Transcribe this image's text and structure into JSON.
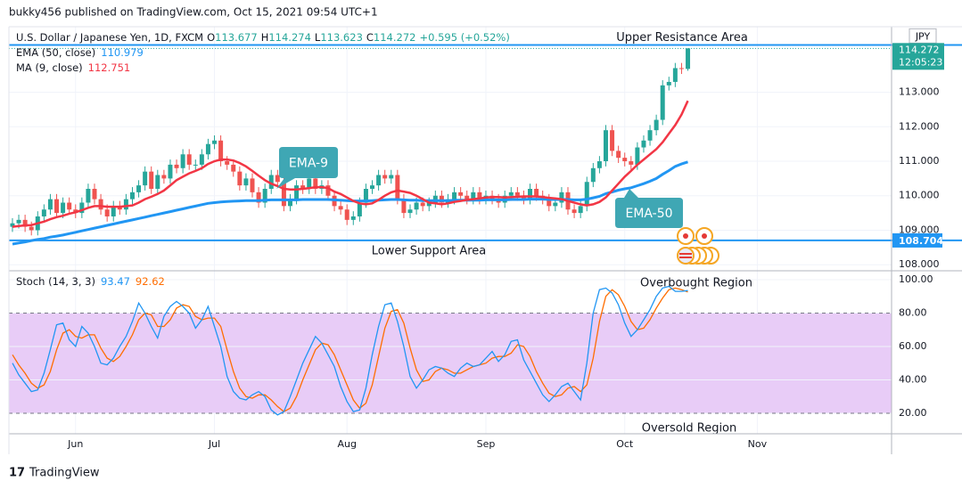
{
  "header": "bukky456 published on TradingView.com, Oct 15, 2021 09:54 UTC+1",
  "footer": "TradingView",
  "chart_data": [
    {
      "type": "candlestick",
      "symbol": "U.S. Dollar / Japanese Yen, 1D, FXCM",
      "ohlc_labels": [
        "O",
        "H",
        "L",
        "C"
      ],
      "change": "+0.595 (+0.52%)",
      "currency": "JPY",
      "countdown": "12:05:23",
      "up_color": "#26a69a",
      "down_color": "#ef5350",
      "open": [
        109.1,
        109.2,
        109.3,
        109.1,
        109.0,
        109.4,
        109.6,
        109.9,
        109.5,
        109.8,
        109.6,
        109.5,
        109.8,
        110.2,
        109.9,
        109.6,
        109.4,
        109.7,
        109.6,
        109.9,
        110.1,
        110.3,
        110.7,
        110.2,
        110.6,
        110.5,
        110.9,
        110.8,
        111.2,
        110.9,
        110.9,
        111.2,
        111.5,
        111.6,
        111.0,
        110.9,
        110.7,
        110.3,
        110.5,
        110.1,
        109.8,
        110.2,
        110.6,
        110.4,
        109.7,
        109.9,
        110.3,
        110.2,
        110.5,
        110.2,
        110.3,
        110.0,
        109.7,
        109.6,
        109.3,
        109.4,
        109.8,
        110.2,
        110.3,
        110.6,
        110.5,
        110.6,
        109.9,
        109.5,
        109.6,
        109.8,
        109.7,
        109.8,
        110.0,
        109.8,
        109.9,
        110.1,
        110.0,
        109.9,
        110.1,
        109.9,
        110.0,
        109.9,
        109.8,
        110.0,
        110.1,
        110.0,
        109.9,
        110.2,
        110.0,
        109.9,
        109.7,
        109.8,
        110.1,
        109.6,
        109.5,
        109.7,
        110.4,
        110.8,
        111.0,
        111.9,
        111.3,
        111.1,
        111.0,
        110.9,
        111.4,
        111.6,
        111.9,
        112.2,
        113.2,
        113.3,
        113.7,
        113.677
      ],
      "high": [
        109.35,
        109.45,
        109.45,
        109.25,
        109.55,
        109.75,
        110.05,
        110.05,
        109.95,
        109.95,
        109.75,
        109.95,
        110.35,
        110.35,
        110.05,
        109.75,
        109.85,
        109.85,
        110.05,
        110.25,
        110.45,
        110.85,
        110.85,
        110.75,
        110.75,
        111.05,
        111.05,
        111.35,
        111.35,
        111.05,
        111.35,
        111.65,
        111.75,
        111.75,
        111.15,
        111.05,
        110.85,
        110.65,
        110.65,
        110.25,
        110.35,
        110.75,
        110.75,
        110.55,
        110.05,
        110.45,
        110.45,
        110.65,
        110.65,
        110.45,
        110.45,
        110.15,
        109.85,
        109.75,
        109.55,
        109.95,
        110.35,
        110.45,
        110.75,
        110.75,
        110.75,
        110.75,
        110.05,
        109.75,
        109.95,
        109.95,
        109.95,
        110.15,
        110.15,
        110.05,
        110.25,
        110.25,
        110.15,
        110.25,
        110.25,
        110.15,
        110.15,
        110.05,
        110.15,
        110.25,
        110.25,
        110.15,
        110.35,
        110.35,
        110.15,
        110.05,
        109.95,
        110.25,
        110.25,
        109.75,
        109.85,
        110.55,
        110.95,
        111.15,
        112.05,
        112.05,
        111.45,
        111.25,
        111.15,
        111.55,
        111.75,
        112.05,
        112.35,
        113.35,
        113.45,
        113.85,
        113.85,
        114.274
      ],
      "low": [
        108.95,
        109.05,
        108.95,
        108.85,
        108.85,
        109.25,
        109.45,
        109.35,
        109.35,
        109.45,
        109.35,
        109.35,
        109.65,
        109.75,
        109.45,
        109.25,
        109.25,
        109.45,
        109.45,
        109.75,
        109.95,
        110.15,
        110.05,
        110.05,
        110.35,
        110.35,
        110.65,
        110.65,
        110.75,
        110.75,
        110.75,
        111.05,
        111.35,
        110.85,
        110.75,
        110.55,
        110.15,
        110.15,
        109.95,
        109.65,
        109.65,
        110.05,
        110.25,
        109.55,
        109.55,
        109.75,
        110.05,
        110.05,
        110.05,
        110.05,
        109.85,
        109.55,
        109.45,
        109.15,
        109.15,
        109.25,
        109.65,
        110.05,
        110.15,
        110.35,
        110.35,
        109.75,
        109.35,
        109.35,
        109.45,
        109.55,
        109.55,
        109.65,
        109.65,
        109.65,
        109.75,
        109.85,
        109.75,
        109.75,
        109.75,
        109.75,
        109.75,
        109.65,
        109.65,
        109.85,
        109.85,
        109.75,
        109.75,
        109.85,
        109.75,
        109.55,
        109.55,
        109.65,
        109.45,
        109.35,
        109.35,
        109.55,
        110.25,
        110.65,
        110.85,
        111.15,
        110.95,
        110.85,
        110.75,
        110.75,
        111.25,
        111.45,
        111.75,
        112.05,
        113.05,
        113.15,
        113.53,
        113.623
      ],
      "close": [
        109.2,
        109.3,
        109.1,
        109.0,
        109.4,
        109.6,
        109.9,
        109.5,
        109.8,
        109.6,
        109.5,
        109.8,
        110.2,
        109.9,
        109.6,
        109.4,
        109.7,
        109.6,
        109.9,
        110.1,
        110.3,
        110.7,
        110.2,
        110.6,
        110.5,
        110.9,
        110.8,
        111.2,
        110.9,
        110.9,
        111.2,
        111.5,
        111.6,
        111.0,
        110.9,
        110.7,
        110.3,
        110.5,
        110.1,
        109.8,
        110.2,
        110.6,
        110.4,
        109.7,
        109.9,
        110.3,
        110.2,
        110.5,
        110.2,
        110.3,
        110.0,
        109.7,
        109.6,
        109.3,
        109.4,
        109.8,
        110.2,
        110.3,
        110.6,
        110.5,
        110.6,
        109.9,
        109.5,
        109.6,
        109.8,
        109.7,
        109.8,
        110.0,
        109.8,
        109.9,
        110.1,
        110.0,
        109.9,
        110.1,
        109.9,
        110.0,
        109.9,
        109.8,
        110.0,
        110.1,
        110.0,
        109.9,
        110.2,
        110.0,
        109.9,
        109.7,
        109.8,
        110.1,
        109.6,
        109.5,
        109.7,
        110.4,
        110.8,
        111.0,
        111.9,
        111.3,
        111.1,
        111.0,
        110.9,
        111.4,
        111.6,
        111.9,
        112.2,
        113.2,
        113.3,
        113.7,
        113.68,
        114.272
      ],
      "series": [
        {
          "name": "EMA (50, close)",
          "color": "#2196f3",
          "values": [
            108.6,
            108.63,
            108.66,
            108.7,
            108.73,
            108.76,
            108.8,
            108.83,
            108.86,
            108.9,
            108.94,
            108.98,
            109.02,
            109.06,
            109.1,
            109.14,
            109.18,
            109.22,
            109.26,
            109.3,
            109.34,
            109.38,
            109.42,
            109.46,
            109.5,
            109.54,
            109.58,
            109.62,
            109.66,
            109.7,
            109.74,
            109.78,
            109.8,
            109.82,
            109.83,
            109.84,
            109.85,
            109.86,
            109.86,
            109.86,
            109.87,
            109.88,
            109.88,
            109.88,
            109.88,
            109.88,
            109.89,
            109.89,
            109.89,
            109.89,
            109.89,
            109.88,
            109.87,
            109.86,
            109.85,
            109.85,
            109.85,
            109.86,
            109.87,
            109.88,
            109.89,
            109.89,
            109.88,
            109.87,
            109.87,
            109.86,
            109.86,
            109.86,
            109.86,
            109.86,
            109.87,
            109.87,
            109.87,
            109.87,
            109.87,
            109.88,
            109.88,
            109.88,
            109.88,
            109.89,
            109.89,
            109.89,
            109.9,
            109.9,
            109.9,
            109.89,
            109.89,
            109.89,
            109.89,
            109.88,
            109.88,
            109.9,
            109.94,
            109.98,
            110.06,
            110.11,
            110.16,
            110.2,
            110.23,
            110.29,
            110.35,
            110.42,
            110.5,
            110.62,
            110.73,
            110.85,
            110.92,
            110.979
          ]
        },
        {
          "name": "MA (9, close)",
          "color": "#f23645",
          "values": [
            109.1,
            109.12,
            109.14,
            109.15,
            109.2,
            109.25,
            109.32,
            109.38,
            109.42,
            109.48,
            109.52,
            109.58,
            109.65,
            109.7,
            109.7,
            109.68,
            109.68,
            109.68,
            109.7,
            109.72,
            109.8,
            109.9,
            109.97,
            110.05,
            110.15,
            110.3,
            110.45,
            110.55,
            110.65,
            110.72,
            110.8,
            110.92,
            111.0,
            111.05,
            111.05,
            111.02,
            110.95,
            110.85,
            110.72,
            110.58,
            110.45,
            110.35,
            110.28,
            110.2,
            110.18,
            110.18,
            110.2,
            110.22,
            110.25,
            110.25,
            110.22,
            110.12,
            110.05,
            109.95,
            109.85,
            109.78,
            109.75,
            109.78,
            109.88,
            110.0,
            110.1,
            110.15,
            110.12,
            110.08,
            110.0,
            109.9,
            109.8,
            109.78,
            109.75,
            109.78,
            109.82,
            109.85,
            109.88,
            109.9,
            109.92,
            109.95,
            109.96,
            109.96,
            109.95,
            109.96,
            109.97,
            109.98,
            109.98,
            109.98,
            109.96,
            109.94,
            109.92,
            109.9,
            109.85,
            109.8,
            109.75,
            109.72,
            109.75,
            109.82,
            109.95,
            110.15,
            110.35,
            110.55,
            110.72,
            110.9,
            111.05,
            111.2,
            111.35,
            111.55,
            111.8,
            112.05,
            112.35,
            112.751
          ]
        }
      ],
      "levels": [
        {
          "name": "Upper Resistance Area",
          "value": 114.37,
          "color": "#2196f3"
        },
        {
          "name": "Lower Support Area",
          "value": 108.704,
          "color": "#2196f3"
        }
      ],
      "annotations": [
        "EMA-9",
        "EMA-50"
      ],
      "annotation_color": "#3fa7b4",
      "xlim": [
        -0.56,
        139.27
      ],
      "xticks": [
        {
          "value": 10,
          "label": "Jun"
        },
        {
          "value": 32,
          "label": "Jul"
        },
        {
          "value": 53,
          "label": "Aug"
        },
        {
          "value": 75,
          "label": "Sep"
        },
        {
          "value": 97,
          "label": "Oct"
        },
        {
          "value": 118,
          "label": "Nov"
        }
      ],
      "ylim": [
        107.85,
        114.9
      ],
      "yticks": [
        {
          "value": 113,
          "label": "113.000"
        },
        {
          "value": 112,
          "label": "112.000"
        },
        {
          "value": 111,
          "label": "111.000"
        },
        {
          "value": 110,
          "label": "110.000"
        },
        {
          "value": 109,
          "label": "109.000"
        },
        {
          "value": 108,
          "label": "108.000"
        }
      ],
      "grid": true
    },
    {
      "type": "line",
      "title": "Stoch (14, 3, 3)",
      "series": [
        {
          "color": "#2196f3",
          "values": [
            50,
            43,
            38,
            33,
            34,
            44,
            58,
            73,
            74,
            64,
            60,
            72,
            68,
            60,
            50,
            49,
            53,
            60,
            66,
            75,
            86,
            80,
            72,
            65,
            78,
            84,
            87,
            84,
            80,
            71,
            76,
            84,
            72,
            60,
            42,
            33,
            29,
            28,
            31,
            33,
            30,
            22,
            19,
            21,
            30,
            40,
            50,
            58,
            66,
            62,
            55,
            48,
            36,
            27,
            21,
            22,
            35,
            55,
            72,
            85,
            86,
            75,
            60,
            42,
            35,
            40,
            46,
            48,
            47,
            44,
            42,
            47,
            50,
            48,
            49,
            53,
            57,
            51,
            55,
            63,
            64,
            52,
            45,
            38,
            31,
            27,
            31,
            36,
            38,
            33,
            28,
            50,
            80,
            94,
            95,
            92,
            85,
            74,
            66,
            70,
            76,
            82,
            90,
            95,
            96,
            93,
            93,
            93.47
          ]
        },
        {
          "color": "#ff6d00",
          "values": [
            55,
            49,
            44,
            38,
            35,
            37,
            45,
            58,
            68,
            70,
            66,
            65,
            67,
            67,
            59,
            53,
            51,
            54,
            60,
            67,
            76,
            80,
            79,
            72,
            72,
            76,
            83,
            85,
            84,
            78,
            76,
            77,
            77,
            72,
            58,
            45,
            35,
            30,
            29,
            31,
            31,
            28,
            24,
            21,
            23,
            30,
            40,
            49,
            58,
            62,
            61,
            55,
            46,
            37,
            28,
            23,
            26,
            37,
            54,
            71,
            81,
            82,
            74,
            59,
            46,
            39,
            40,
            45,
            47,
            46,
            44,
            44,
            46,
            48,
            49,
            50,
            53,
            54,
            54,
            56,
            61,
            60,
            54,
            45,
            38,
            32,
            30,
            31,
            35,
            36,
            33,
            37,
            53,
            75,
            90,
            94,
            91,
            84,
            75,
            70,
            71,
            76,
            83,
            89,
            94,
            95,
            94,
            92.62
          ]
        }
      ],
      "bands": [
        20,
        80
      ],
      "band_color": "#e8ccf7",
      "annotations": [
        "Overbought Region",
        "Oversold Region"
      ],
      "xlim": [
        -0.56,
        139.27
      ],
      "ylim": [
        7.7,
        104.8
      ],
      "yticks": [
        {
          "value": 100,
          "label": "100.00"
        },
        {
          "value": 80,
          "label": "80.00"
        },
        {
          "value": 60,
          "label": "60.00"
        },
        {
          "value": 40,
          "label": "40.00"
        },
        {
          "value": 20,
          "label": "20.00"
        }
      ],
      "grid": true
    }
  ]
}
